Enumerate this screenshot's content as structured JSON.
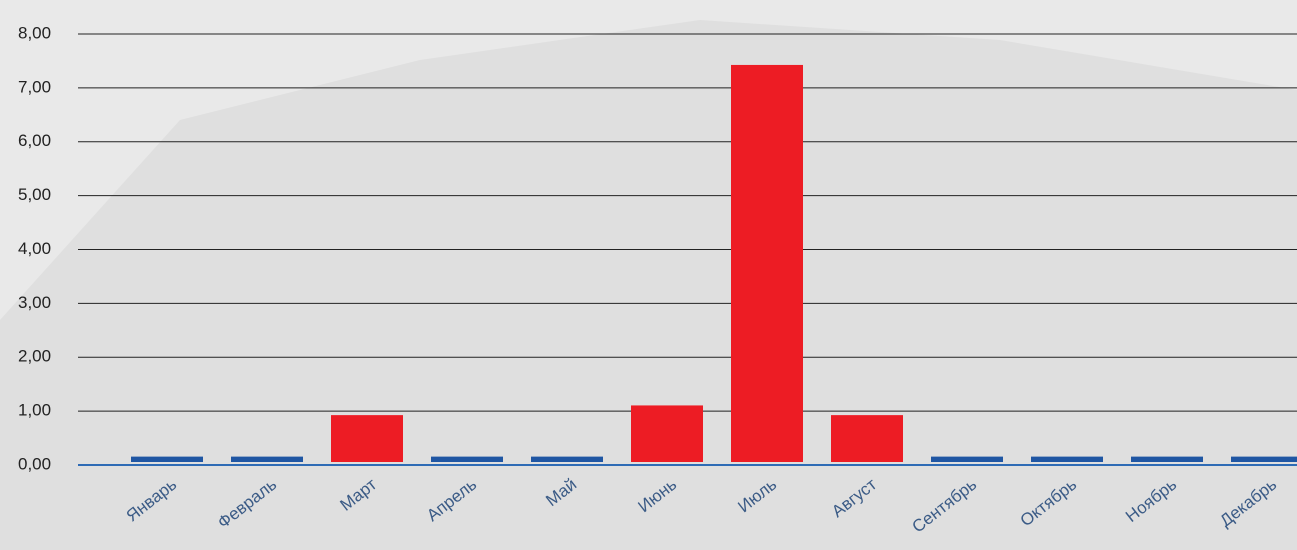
{
  "chart_data": {
    "type": "bar",
    "categories": [
      "Январь",
      "Февраль",
      "Март",
      "Апрель",
      "Май",
      "Июнь",
      "Июль",
      "Август",
      "Сентябрь",
      "Октябрь",
      "Ноябрь",
      "Декабрь"
    ],
    "values": [
      0.1,
      0.1,
      0.87,
      0.1,
      0.1,
      1.05,
      7.37,
      0.87,
      0.1,
      0.1,
      0.1,
      0.1
    ],
    "colors": [
      "#1f56a3",
      "#1f56a3",
      "#ed1c24",
      "#1f56a3",
      "#1f56a3",
      "#ed1c24",
      "#ed1c24",
      "#ed1c24",
      "#1f56a3",
      "#1f56a3",
      "#1f56a3",
      "#1f56a3"
    ],
    "ylim": [
      0,
      8
    ],
    "yticks": [
      {
        "value": 0,
        "label": "0,00"
      },
      {
        "value": 1,
        "label": "1,00"
      },
      {
        "value": 2,
        "label": "2,00"
      },
      {
        "value": 3,
        "label": "3,00"
      },
      {
        "value": 4,
        "label": "4,00"
      },
      {
        "value": 5,
        "label": "5,00"
      },
      {
        "value": 6,
        "label": "6,00"
      },
      {
        "value": 7,
        "label": "7,00"
      },
      {
        "value": 8,
        "label": "8,00"
      }
    ],
    "grid": true
  }
}
